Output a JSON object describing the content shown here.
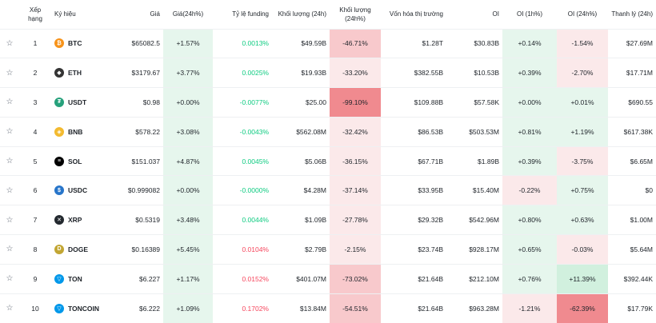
{
  "columns": {
    "rank": "Xếp hạng",
    "symbol": "Ký hiệu",
    "price": "Giá",
    "change": "Giá(24h%)",
    "funding": "Tỷ lệ funding",
    "volume": "Khối lượng (24h)",
    "volume_change": "Khối lượng (24h%)",
    "mcap": "Vốn hóa thị trường",
    "oi": "OI",
    "oi_1h": "OI (1h%)",
    "oi_24h": "OI (24h%)",
    "liq": "Thanh lý (24h)"
  },
  "colors": {
    "green_light": "#e6f6ed",
    "green_mid": "#d1f0de",
    "red_light": "#fbe9ea",
    "red_mid": "#f8c9cc",
    "red_strong": "#f08a8f",
    "funding_pos": "#0ecb81",
    "funding_neg": "#f6465d"
  },
  "rows": [
    {
      "rank": "1",
      "symbol": "BTC",
      "icon": "btc-icon",
      "logo_color": "#f7931a",
      "glyph": "₿",
      "price": "$65082.5",
      "change": "+1.57%",
      "funding": "0.0013%",
      "funding_sign": "pos",
      "volume": "$49.59B",
      "volume_change": "-46.71%",
      "vc_level": "red_mid",
      "mcap": "$1.28T",
      "oi": "$30.83B",
      "oi_1h": "+0.14%",
      "oi1_level": "green_light",
      "oi_24h": "-1.54%",
      "oi24_level": "red_light",
      "liq": "$27.69M"
    },
    {
      "rank": "2",
      "symbol": "ETH",
      "icon": "eth-icon",
      "logo_color": "#343434",
      "glyph": "◆",
      "price": "$3179.67",
      "change": "+3.77%",
      "funding": "0.0025%",
      "funding_sign": "pos",
      "volume": "$19.93B",
      "volume_change": "-33.20%",
      "vc_level": "red_light",
      "mcap": "$382.55B",
      "oi": "$10.53B",
      "oi_1h": "+0.39%",
      "oi1_level": "green_light",
      "oi_24h": "-2.70%",
      "oi24_level": "red_light",
      "liq": "$17.71M"
    },
    {
      "rank": "3",
      "symbol": "USDT",
      "icon": "usdt-icon",
      "logo_color": "#26a17b",
      "glyph": "₮",
      "price": "$0.98",
      "change": "+0.00%",
      "funding": "-0.0077%",
      "funding_sign": "pos",
      "volume": "$25.00",
      "volume_change": "-99.10%",
      "vc_level": "red_strong",
      "mcap": "$109.88B",
      "oi": "$57.58K",
      "oi_1h": "+0.00%",
      "oi1_level": "green_light",
      "oi_24h": "+0.01%",
      "oi24_level": "green_light",
      "liq": "$690.55"
    },
    {
      "rank": "4",
      "symbol": "BNB",
      "icon": "bnb-icon",
      "logo_color": "#f3ba2f",
      "glyph": "◈",
      "price": "$578.22",
      "change": "+3.08%",
      "funding": "-0.0043%",
      "funding_sign": "pos",
      "volume": "$562.08M",
      "volume_change": "-32.42%",
      "vc_level": "red_light",
      "mcap": "$86.53B",
      "oi": "$503.53M",
      "oi_1h": "+0.81%",
      "oi1_level": "green_light",
      "oi_24h": "+1.19%",
      "oi24_level": "green_light",
      "liq": "$617.38K"
    },
    {
      "rank": "5",
      "symbol": "SOL",
      "icon": "sol-icon",
      "logo_color": "#000000",
      "glyph": "≡",
      "price": "$151.037",
      "change": "+4.87%",
      "funding": "0.0045%",
      "funding_sign": "pos",
      "volume": "$5.06B",
      "volume_change": "-36.15%",
      "vc_level": "red_light",
      "mcap": "$67.71B",
      "oi": "$1.89B",
      "oi_1h": "+0.39%",
      "oi1_level": "green_light",
      "oi_24h": "-3.75%",
      "oi24_level": "red_light",
      "liq": "$6.65M"
    },
    {
      "rank": "6",
      "symbol": "USDC",
      "icon": "usdc-icon",
      "logo_color": "#2775ca",
      "glyph": "$",
      "price": "$0.999082",
      "change": "+0.00%",
      "funding": "-0.0000%",
      "funding_sign": "pos",
      "volume": "$4.28M",
      "volume_change": "-37.14%",
      "vc_level": "red_light",
      "mcap": "$33.95B",
      "oi": "$15.40M",
      "oi_1h": "-0.22%",
      "oi1_level": "red_light",
      "oi_24h": "+0.75%",
      "oi24_level": "green_light",
      "liq": "$0"
    },
    {
      "rank": "7",
      "symbol": "XRP",
      "icon": "xrp-icon",
      "logo_color": "#23292f",
      "glyph": "✕",
      "price": "$0.5319",
      "change": "+3.48%",
      "funding": "0.0044%",
      "funding_sign": "pos",
      "volume": "$1.09B",
      "volume_change": "-27.78%",
      "vc_level": "red_light",
      "mcap": "$29.32B",
      "oi": "$542.96M",
      "oi_1h": "+0.80%",
      "oi1_level": "green_light",
      "oi_24h": "+0.63%",
      "oi24_level": "green_light",
      "liq": "$1.00M"
    },
    {
      "rank": "8",
      "symbol": "DOGE",
      "icon": "doge-icon",
      "logo_color": "#c2a633",
      "glyph": "D",
      "price": "$0.16389",
      "change": "+5.45%",
      "funding": "0.0104%",
      "funding_sign": "neg",
      "volume": "$2.79B",
      "volume_change": "-2.15%",
      "vc_level": "red_light",
      "mcap": "$23.74B",
      "oi": "$928.17M",
      "oi_1h": "+0.65%",
      "oi1_level": "green_light",
      "oi_24h": "-0.03%",
      "oi24_level": "red_light",
      "liq": "$5.64M"
    },
    {
      "rank": "9",
      "symbol": "TON",
      "icon": "ton-icon",
      "logo_color": "#0098ea",
      "glyph": "▽",
      "price": "$6.227",
      "change": "+1.17%",
      "funding": "0.0152%",
      "funding_sign": "neg",
      "volume": "$401.07M",
      "volume_change": "-73.02%",
      "vc_level": "red_mid",
      "mcap": "$21.64B",
      "oi": "$212.10M",
      "oi_1h": "+0.76%",
      "oi1_level": "green_light",
      "oi_24h": "+11.39%",
      "oi24_level": "green_mid",
      "liq": "$392.44K"
    },
    {
      "rank": "10",
      "symbol": "TONCOIN",
      "icon": "toncoin-icon",
      "logo_color": "#0098ea",
      "glyph": "▽",
      "price": "$6.222",
      "change": "+1.09%",
      "funding": "0.1702%",
      "funding_sign": "neg",
      "volume": "$13.84M",
      "volume_change": "-54.51%",
      "vc_level": "red_mid",
      "mcap": "$21.64B",
      "oi": "$963.28M",
      "oi_1h": "-1.21%",
      "oi1_level": "red_light",
      "oi_24h": "-62.39%",
      "oi24_level": "red_strong",
      "liq": "$17.79K"
    }
  ]
}
